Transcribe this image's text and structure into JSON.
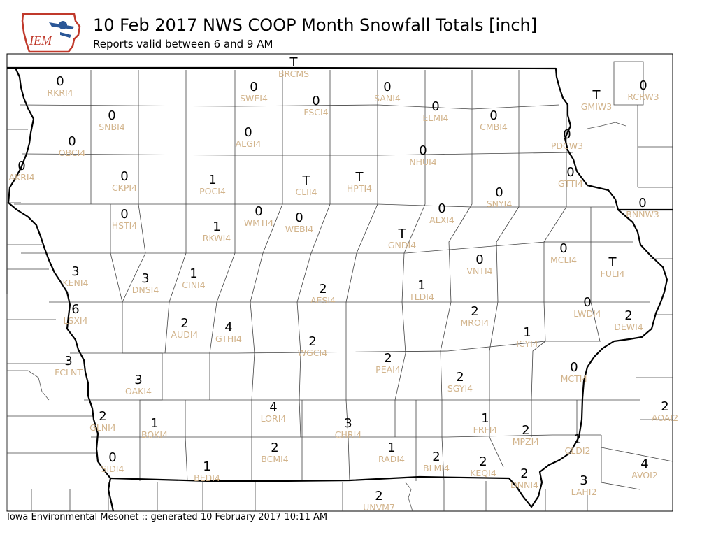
{
  "header": {
    "title": "10 Feb 2017 NWS COOP Month Snowfall Totals [inch]",
    "subtitle": "Reports valid between 6 and 9 AM",
    "logo_text": "IEM"
  },
  "footer": {
    "text": "Iowa Environmental Mesonet :: generated 10 February 2017 10:11 AM"
  },
  "colors": {
    "value_text": "#000000",
    "station_label": "#d2b48c",
    "logo_red": "#c0392b",
    "logo_blue": "#2b5797"
  },
  "stations": [
    {
      "id": "BRCMS",
      "value": "T"
    },
    {
      "id": "RKRI4",
      "value": "0"
    },
    {
      "id": "SWEI4",
      "value": "0"
    },
    {
      "id": "SANI4",
      "value": "0"
    },
    {
      "id": "RCRW3",
      "value": "0"
    },
    {
      "id": "GMIW3",
      "value": "T"
    },
    {
      "id": "FSCI4",
      "value": "0"
    },
    {
      "id": "ELMI4",
      "value": "0"
    },
    {
      "id": "SNBI4",
      "value": "0"
    },
    {
      "id": "CMBI4",
      "value": "0"
    },
    {
      "id": "ALGI4",
      "value": "0"
    },
    {
      "id": "PDCW3",
      "value": "0"
    },
    {
      "id": "OBCI4",
      "value": "0"
    },
    {
      "id": "NHUI4",
      "value": "0"
    },
    {
      "id": "AKRI4",
      "value": "0"
    },
    {
      "id": "GTTI4",
      "value": "0"
    },
    {
      "id": "CKPI4",
      "value": "0"
    },
    {
      "id": "POCI4",
      "value": "1"
    },
    {
      "id": "CLII4",
      "value": "T"
    },
    {
      "id": "HPTI4",
      "value": "T"
    },
    {
      "id": "SNYI4",
      "value": "0"
    },
    {
      "id": "BNNW3",
      "value": "0"
    },
    {
      "id": "HSTI4",
      "value": "0"
    },
    {
      "id": "WMTI4",
      "value": "0"
    },
    {
      "id": "WEBI4",
      "value": "0"
    },
    {
      "id": "ALXI4",
      "value": "0"
    },
    {
      "id": "RKWI4",
      "value": "1"
    },
    {
      "id": "GNDI4",
      "value": "T"
    },
    {
      "id": "MCLI4",
      "value": "0"
    },
    {
      "id": "VNTI4",
      "value": "0"
    },
    {
      "id": "FULI4",
      "value": "T"
    },
    {
      "id": "KENI4",
      "value": "3"
    },
    {
      "id": "DNSI4",
      "value": "3"
    },
    {
      "id": "CINI4",
      "value": "1"
    },
    {
      "id": "AESI4",
      "value": "2"
    },
    {
      "id": "TLDI4",
      "value": "1"
    },
    {
      "id": "LWDI4",
      "value": "0"
    },
    {
      "id": "LSXI4",
      "value": "6"
    },
    {
      "id": "MROI4",
      "value": "2"
    },
    {
      "id": "DEWI4",
      "value": "2"
    },
    {
      "id": "AUDI4",
      "value": "2"
    },
    {
      "id": "GTHI4",
      "value": "4"
    },
    {
      "id": "ICYI4",
      "value": "1"
    },
    {
      "id": "WGCI4",
      "value": "2"
    },
    {
      "id": "FCLNT",
      "value": "3"
    },
    {
      "id": "PEAI4",
      "value": "2"
    },
    {
      "id": "OAKI4",
      "value": "3"
    },
    {
      "id": "SGYI4",
      "value": "2"
    },
    {
      "id": "MCTI4",
      "value": "0"
    },
    {
      "id": "LORI4",
      "value": "4"
    },
    {
      "id": "AOAI2",
      "value": "2"
    },
    {
      "id": "GLNI4",
      "value": "2"
    },
    {
      "id": "BOKI4",
      "value": "1"
    },
    {
      "id": "CHRI4",
      "value": "3"
    },
    {
      "id": "FRFI4",
      "value": "1"
    },
    {
      "id": "MPZI4",
      "value": "2"
    },
    {
      "id": "CLDI2",
      "value": "1"
    },
    {
      "id": "SIDI4",
      "value": "0"
    },
    {
      "id": "BCMI4",
      "value": "2"
    },
    {
      "id": "RADI4",
      "value": "1"
    },
    {
      "id": "BLMI4",
      "value": "2"
    },
    {
      "id": "AVOI2",
      "value": "4"
    },
    {
      "id": "BEDI4",
      "value": "1"
    },
    {
      "id": "KEQI4",
      "value": "2"
    },
    {
      "id": "DNNI4",
      "value": "2"
    },
    {
      "id": "LAHI2",
      "value": "3"
    },
    {
      "id": "UNVM7",
      "value": "2"
    }
  ]
}
